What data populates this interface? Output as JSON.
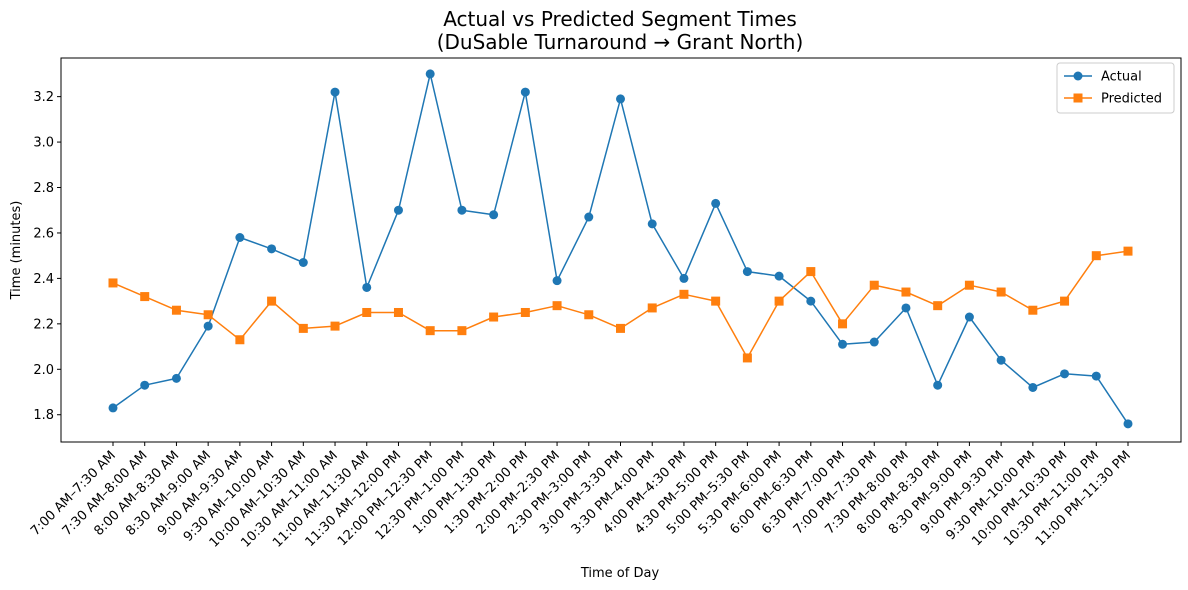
{
  "chart_data": {
    "type": "line",
    "title": "Actual vs Predicted Segment Times",
    "subtitle": "(DuSable Turnaround → Grant North)",
    "xlabel": "Time of Day",
    "ylabel": "Time (minutes)",
    "ylim": [
      1.68,
      3.37
    ],
    "yticks": [
      "1.8",
      "2.0",
      "2.2",
      "2.4",
      "2.6",
      "2.8",
      "3.0",
      "3.2"
    ],
    "grid": false,
    "legend_position": "top-right",
    "categories": [
      "7:00 AM–7:30 AM",
      "7:30 AM–8:00 AM",
      "8:00 AM–8:30 AM",
      "8:30 AM–9:00 AM",
      "9:00 AM–9:30 AM",
      "9:30 AM–10:00 AM",
      "10:00 AM–10:30 AM",
      "10:30 AM–11:00 AM",
      "11:00 AM–11:30 AM",
      "11:30 AM–12:00 PM",
      "12:00 PM–12:30 PM",
      "12:30 PM–1:00 PM",
      "1:00 PM–1:30 PM",
      "1:30 PM–2:00 PM",
      "2:00 PM–2:30 PM",
      "2:30 PM–3:00 PM",
      "3:00 PM–3:30 PM",
      "3:30 PM–4:00 PM",
      "4:00 PM–4:30 PM",
      "4:30 PM–5:00 PM",
      "5:00 PM–5:30 PM",
      "5:30 PM–6:00 PM",
      "6:00 PM–6:30 PM",
      "6:30 PM–7:00 PM",
      "7:00 PM–7:30 PM",
      "7:30 PM–8:00 PM",
      "8:00 PM–8:30 PM",
      "8:30 PM–9:00 PM",
      "9:00 PM–9:30 PM",
      "9:30 PM–10:00 PM",
      "10:00 PM–10:30 PM",
      "10:30 PM–11:00 PM",
      "11:00 PM–11:30 PM"
    ],
    "series": [
      {
        "name": "Actual",
        "color": "#1f77b4",
        "marker": "circle",
        "values": [
          1.83,
          1.93,
          1.96,
          2.19,
          2.58,
          2.53,
          2.47,
          3.22,
          2.36,
          2.7,
          3.3,
          2.7,
          2.68,
          3.22,
          2.39,
          2.67,
          3.19,
          2.64,
          2.4,
          2.73,
          2.43,
          2.41,
          2.3,
          2.11,
          2.12,
          2.27,
          1.93,
          2.23,
          2.04,
          1.92,
          1.98,
          1.97,
          1.76
        ]
      },
      {
        "name": "Predicted",
        "color": "#ff7f0e",
        "marker": "square",
        "values": [
          2.38,
          2.32,
          2.26,
          2.24,
          2.13,
          2.3,
          2.18,
          2.19,
          2.25,
          2.25,
          2.17,
          2.17,
          2.23,
          2.25,
          2.28,
          2.24,
          2.18,
          2.27,
          2.33,
          2.3,
          2.05,
          2.3,
          2.43,
          2.2,
          2.37,
          2.34,
          2.28,
          2.37,
          2.34,
          2.26,
          2.3,
          2.5,
          2.52
        ]
      }
    ]
  }
}
